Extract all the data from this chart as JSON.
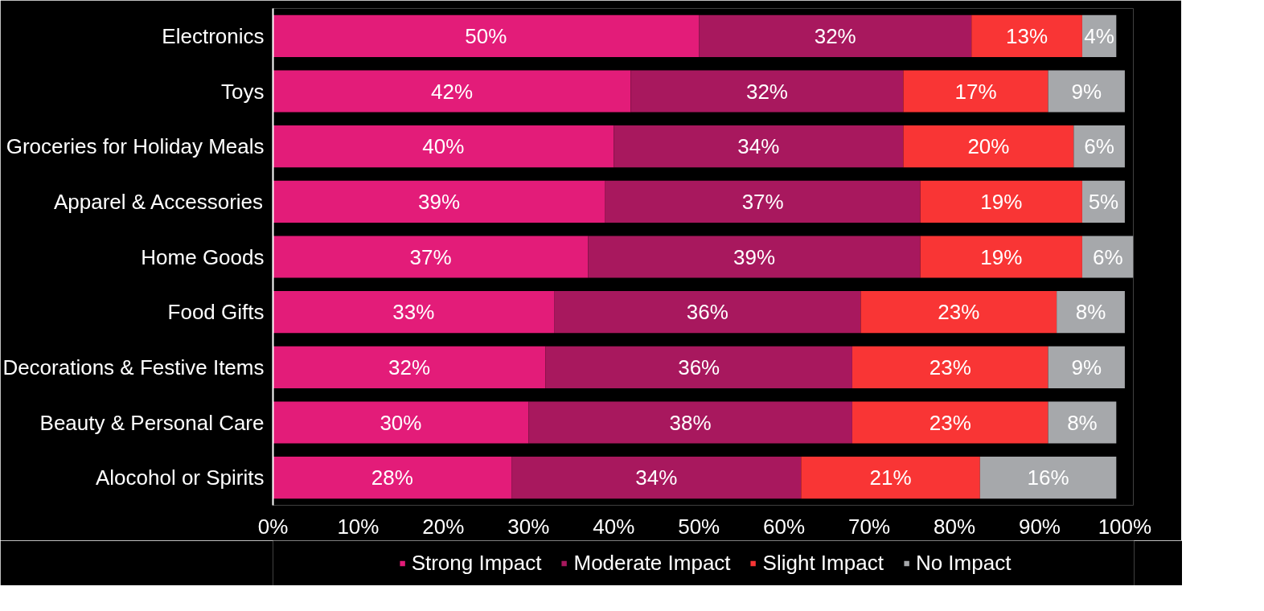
{
  "chart_data": {
    "type": "bar",
    "orientation": "horizontal",
    "stacked": true,
    "categories": [
      "Electronics",
      "Toys",
      "Groceries for Holiday Meals",
      "Apparel & Accessories",
      "Home Goods",
      "Food Gifts",
      "Decorations & Festive Items",
      "Beauty & Personal Care",
      "Alocohol or Spirits"
    ],
    "series": [
      {
        "name": "Strong Impact",
        "color": "#e31c79",
        "values": [
          50,
          42,
          40,
          39,
          37,
          33,
          32,
          30,
          28
        ],
        "value_labels": [
          "50%",
          "42%",
          "40%",
          "39%",
          "37%",
          "33%",
          "32%",
          "30%",
          "28%"
        ]
      },
      {
        "name": "Moderate Impact",
        "color": "#a8185e",
        "values": [
          32,
          32,
          34,
          37,
          39,
          36,
          36,
          38,
          34
        ],
        "value_labels": [
          "32%",
          "32%",
          "34%",
          "37%",
          "39%",
          "36%",
          "36%",
          "38%",
          "34%"
        ]
      },
      {
        "name": "Slight Impact",
        "color": "#f93535",
        "values": [
          13,
          17,
          20,
          19,
          19,
          23,
          23,
          23,
          21
        ],
        "value_labels": [
          "13%",
          "17%",
          "20%",
          "19%",
          "19%",
          "23%",
          "23%",
          "23%",
          "21%"
        ]
      },
      {
        "name": "No Impact",
        "color": "#a6a8ab",
        "values": [
          4,
          9,
          6,
          5,
          6,
          8,
          9,
          8,
          16
        ],
        "value_labels": [
          "4%",
          "9%",
          "6%",
          "5%",
          "6%",
          "8%",
          "9%",
          "8%",
          "16%"
        ]
      }
    ],
    "xlim": [
      0,
      101
    ],
    "xticks": [
      {
        "value": 0,
        "label": "0%"
      },
      {
        "value": 10,
        "label": "10%"
      },
      {
        "value": 20,
        "label": "20%"
      },
      {
        "value": 30,
        "label": "30%"
      },
      {
        "value": 40,
        "label": "40%"
      },
      {
        "value": 50,
        "label": "50%"
      },
      {
        "value": 60,
        "label": "60%"
      },
      {
        "value": 70,
        "label": "70%"
      },
      {
        "value": 80,
        "label": "80%"
      },
      {
        "value": 90,
        "label": "90%"
      },
      {
        "value": 100,
        "label": "100%"
      }
    ],
    "grid": false,
    "legend": "bottom"
  }
}
